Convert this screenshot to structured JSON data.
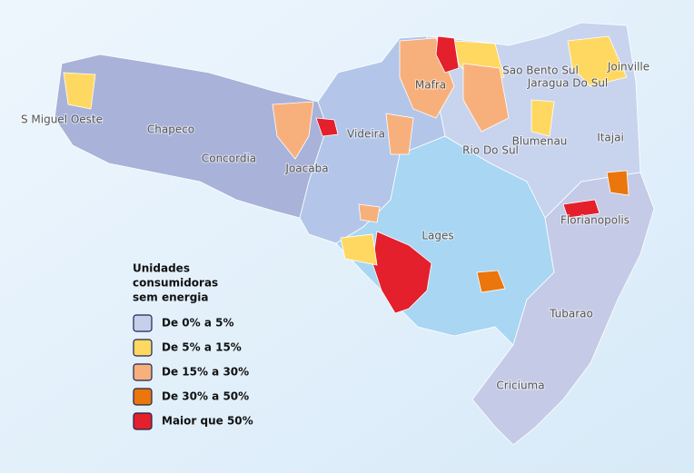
{
  "map": {
    "regions": [
      "S Miguel Oeste",
      "Chapeco",
      "Concordia",
      "Joacaba",
      "Videira",
      "Mafra",
      "Sao Bento Sul",
      "Jaragua Do Sul",
      "Joinville",
      "Blumenau",
      "Itajai",
      "Rio Do Sul",
      "Florianopolis",
      "Lages",
      "Tubarao",
      "Criciuma"
    ],
    "legend": {
      "title": [
        "Unidades",
        "consumidoras",
        "sem energia"
      ],
      "items": [
        {
          "label": "De 0% a 5%",
          "color": "#c7cfea"
        },
        {
          "label": "De 5% a 15%",
          "color": "#ffd862"
        },
        {
          "label": "De 15% a 30%",
          "color": "#f7b07c"
        },
        {
          "label": "De 30% a 50%",
          "color": "#ea760c"
        },
        {
          "label": "Maior que 50%",
          "color": "#e3202c"
        }
      ]
    }
  }
}
